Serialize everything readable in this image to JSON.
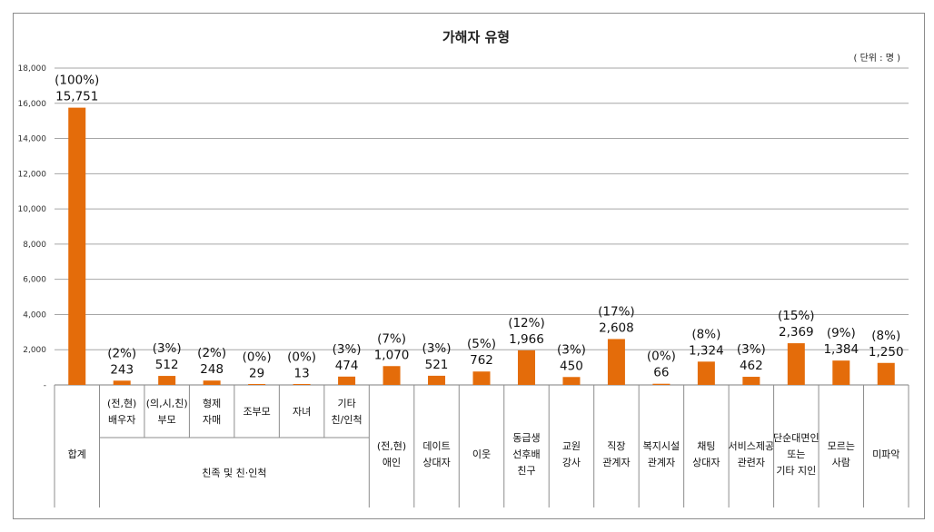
{
  "chart_data": {
    "type": "bar",
    "title": "가해자 유형",
    "unit_note": "( 단위 : 명 )",
    "ylim": [
      0,
      18000
    ],
    "yticks": [
      {
        "v": 0,
        "label": "-"
      },
      {
        "v": 2000,
        "label": "2,000"
      },
      {
        "v": 4000,
        "label": "4,000"
      },
      {
        "v": 6000,
        "label": "6,000"
      },
      {
        "v": 8000,
        "label": "8,000"
      },
      {
        "v": 10000,
        "label": "10,000"
      },
      {
        "v": 12000,
        "label": "12,000"
      },
      {
        "v": 14000,
        "label": "14,000"
      },
      {
        "v": 16000,
        "label": "16,000"
      },
      {
        "v": 18000,
        "label": "18,000"
      }
    ],
    "grid": true,
    "bar_color": "#e46c0a",
    "bars": [
      {
        "value": 15751,
        "value_label": "15,751",
        "pct": "(100%)"
      },
      {
        "value": 243,
        "value_label": "243",
        "pct": "(2%)"
      },
      {
        "value": 512,
        "value_label": "512",
        "pct": "(3%)"
      },
      {
        "value": 248,
        "value_label": "248",
        "pct": "(2%)"
      },
      {
        "value": 29,
        "value_label": "29",
        "pct": "(0%)"
      },
      {
        "value": 13,
        "value_label": "13",
        "pct": "(0%)"
      },
      {
        "value": 474,
        "value_label": "474",
        "pct": "(3%)"
      },
      {
        "value": 1070,
        "value_label": "1,070",
        "pct": "(7%)"
      },
      {
        "value": 521,
        "value_label": "521",
        "pct": "(3%)"
      },
      {
        "value": 762,
        "value_label": "762",
        "pct": "(5%)"
      },
      {
        "value": 1966,
        "value_label": "1,966",
        "pct": "(12%)"
      },
      {
        "value": 450,
        "value_label": "450",
        "pct": "(3%)"
      },
      {
        "value": 2608,
        "value_label": "2,608",
        "pct": "(17%)"
      },
      {
        "value": 66,
        "value_label": "66",
        "pct": "(0%)"
      },
      {
        "value": 1324,
        "value_label": "1,324",
        "pct": "(8%)"
      },
      {
        "value": 462,
        "value_label": "462",
        "pct": "(3%)"
      },
      {
        "value": 2369,
        "value_label": "2,369",
        "pct": "(15%)"
      },
      {
        "value": 1384,
        "value_label": "1,384",
        "pct": "(9%)"
      },
      {
        "value": 1250,
        "value_label": "1,250",
        "pct": "(8%)"
      }
    ],
    "sub_categories": [
      {
        "lines": [
          "(전,현)",
          "배우자"
        ]
      },
      {
        "lines": [
          "(의,시,친)",
          "부모"
        ]
      },
      {
        "lines": [
          "형제",
          "자매"
        ]
      },
      {
        "lines": [
          "조부모"
        ]
      },
      {
        "lines": [
          "자녀"
        ]
      },
      {
        "lines": [
          "기타",
          "친/인척"
        ]
      }
    ],
    "categories": [
      {
        "lines": [
          "합계"
        ],
        "span": 1
      },
      {
        "lines": [
          "친족 및 친·인척"
        ],
        "span": 6
      },
      {
        "lines": [
          "(전,현)",
          "애인"
        ],
        "span": 1
      },
      {
        "lines": [
          "데이트",
          "상대자"
        ],
        "span": 1
      },
      {
        "lines": [
          "이웃"
        ],
        "span": 1
      },
      {
        "lines": [
          "동급생",
          "선후배",
          "친구"
        ],
        "span": 1
      },
      {
        "lines": [
          "교원",
          "강사"
        ],
        "span": 1
      },
      {
        "lines": [
          "직장",
          "관계자"
        ],
        "span": 1
      },
      {
        "lines": [
          "복지시설",
          "관계자"
        ],
        "span": 1
      },
      {
        "lines": [
          "채팅",
          "상대자"
        ],
        "span": 1
      },
      {
        "lines": [
          "서비스제공",
          "관련자"
        ],
        "span": 1
      },
      {
        "lines": [
          "단순대면인",
          "또는",
          "기타 지인"
        ],
        "span": 1
      },
      {
        "lines": [
          "모르는",
          "사람"
        ],
        "span": 1
      },
      {
        "lines": [
          "미파악"
        ],
        "span": 1
      }
    ]
  }
}
